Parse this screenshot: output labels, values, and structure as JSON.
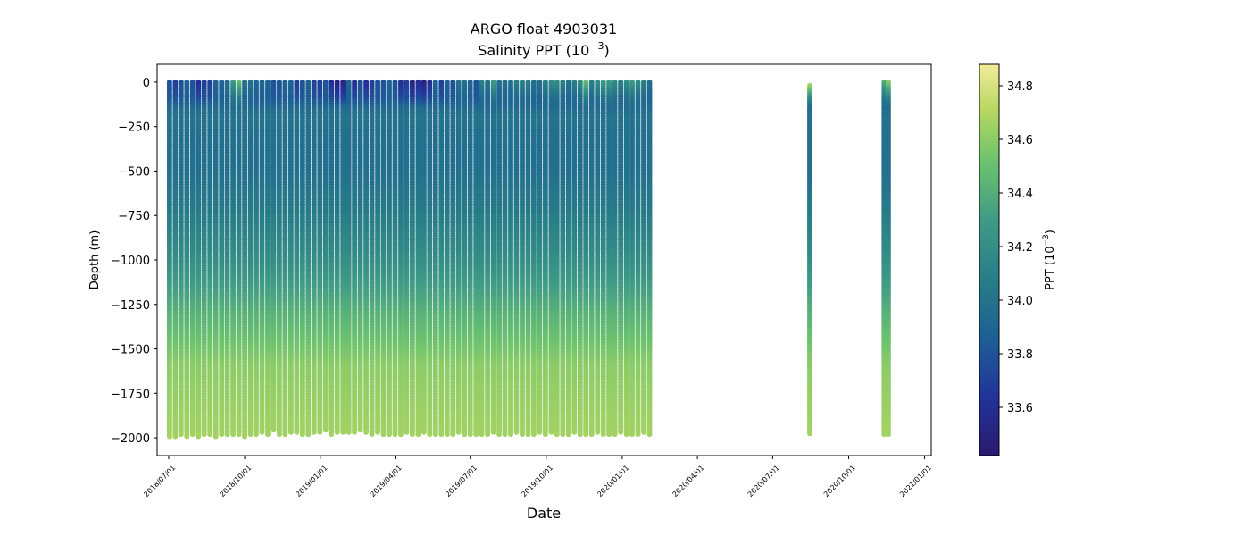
{
  "chart_data": {
    "type": "scatter",
    "title": "ARGO float 4903031",
    "subtitle_base": "Salinity PPT (10",
    "subtitle_exp": "−3",
    "subtitle_end": ")",
    "xlabel": "Date",
    "ylabel": "Depth (m)",
    "ylim": [
      -2100,
      100
    ],
    "xlim": [
      "2018-06-17",
      "2021-01-09"
    ],
    "yticks": [
      0,
      -250,
      -500,
      -750,
      -1000,
      -1250,
      -1500,
      -1750,
      -2000
    ],
    "ytick_labels": [
      "0",
      "−250",
      "−500",
      "−750",
      "−1000",
      "−1250",
      "−1500",
      "−1750",
      "−2000"
    ],
    "xticks": [
      "2018-07-01",
      "2018-10-01",
      "2019-01-01",
      "2019-04-01",
      "2019-07-01",
      "2019-10-01",
      "2020-01-01",
      "2020-04-01",
      "2020-07-01",
      "2020-10-01",
      "2021-01-01"
    ],
    "xtick_labels": [
      "2018/07/01",
      "2018/10/01",
      "2019/01/01",
      "2019/04/01",
      "2019/07/01",
      "2019/10/01",
      "2020/01/01",
      "2020/04/01",
      "2020/07/01",
      "2020/10/01",
      "2021/01/01"
    ],
    "grid": false,
    "colormap": "viridis-like (dark blue → teal → green → yellow)",
    "colorbar": {
      "label_base": "PPT (10",
      "label_exp": "−3",
      "label_end": ")",
      "range": [
        33.42,
        34.88
      ],
      "ticks": [
        33.6,
        33.8,
        34.0,
        34.2,
        34.4,
        34.6,
        34.8
      ],
      "tick_labels": [
        "33.6",
        "33.8",
        "34.0",
        "34.2",
        "34.4",
        "34.6",
        "34.8"
      ]
    },
    "profile_dates": [
      "2018-07-02",
      "2018-07-09",
      "2018-07-16",
      "2018-07-23",
      "2018-07-30",
      "2018-08-06",
      "2018-08-13",
      "2018-08-20",
      "2018-08-27",
      "2018-09-03",
      "2018-09-10",
      "2018-09-17",
      "2018-09-24",
      "2018-10-01",
      "2018-10-08",
      "2018-10-15",
      "2018-10-22",
      "2018-10-29",
      "2018-11-05",
      "2018-11-12",
      "2018-11-19",
      "2018-11-26",
      "2018-12-03",
      "2018-12-10",
      "2018-12-17",
      "2018-12-24",
      "2018-12-31",
      "2019-01-07",
      "2019-01-14",
      "2019-01-21",
      "2019-01-28",
      "2019-02-04",
      "2019-02-11",
      "2019-02-18",
      "2019-02-25",
      "2019-03-04",
      "2019-03-11",
      "2019-03-18",
      "2019-03-25",
      "2019-04-01",
      "2019-04-08",
      "2019-04-15",
      "2019-04-22",
      "2019-04-29",
      "2019-05-06",
      "2019-05-13",
      "2019-05-20",
      "2019-05-27",
      "2019-06-03",
      "2019-06-10",
      "2019-06-17",
      "2019-06-24",
      "2019-07-01",
      "2019-07-08",
      "2019-07-15",
      "2019-07-22",
      "2019-07-29",
      "2019-08-05",
      "2019-08-12",
      "2019-08-19",
      "2019-08-26",
      "2019-09-02",
      "2019-09-09",
      "2019-09-16",
      "2019-09-23",
      "2019-09-30",
      "2019-10-07",
      "2019-10-14",
      "2019-10-21",
      "2019-10-28",
      "2019-11-04",
      "2019-11-11",
      "2019-11-18",
      "2019-11-25",
      "2019-12-02",
      "2019-12-09",
      "2019-12-16",
      "2019-12-23",
      "2019-12-30",
      "2020-01-06",
      "2020-01-13",
      "2020-01-20",
      "2020-01-27",
      "2020-02-03",
      "2020-08-15",
      "2020-11-13",
      "2020-11-18"
    ],
    "profile_max_depth": [
      -2000,
      -2000,
      -1990,
      -1995,
      -1990,
      -2000,
      -1985,
      -1990,
      -1995,
      -1990,
      -1985,
      -1990,
      -1985,
      -1995,
      -1990,
      -1985,
      -1975,
      -1980,
      -1965,
      -1985,
      -1980,
      -1975,
      -1970,
      -1985,
      -1980,
      -1975,
      -1970,
      -1965,
      -1980,
      -1975,
      -1970,
      -1975,
      -1970,
      -1965,
      -1975,
      -1980,
      -1975,
      -1985,
      -1985,
      -1990,
      -1980,
      -1975,
      -1985,
      -1980,
      -1975,
      -1980,
      -1985,
      -1990,
      -1980,
      -1985,
      -1975,
      -1980,
      -1985,
      -1980,
      -1985,
      -1980,
      -1975,
      -1980,
      -1985,
      -1980,
      -1975,
      -1980,
      -1985,
      -1980,
      -1975,
      -1980,
      -1975,
      -1980,
      -1985,
      -1980,
      -1975,
      -1980,
      -1985,
      -1980,
      -1975,
      -1980,
      -1985,
      -1980,
      -1975,
      -1980,
      -1985,
      -1980,
      -1975,
      -1985,
      -1985,
      -1980,
      -1980
    ],
    "profile_top_depth": [
      0,
      0,
      0,
      0,
      0,
      0,
      0,
      0,
      0,
      0,
      0,
      0,
      0,
      0,
      0,
      0,
      0,
      0,
      0,
      0,
      0,
      0,
      0,
      0,
      0,
      0,
      0,
      0,
      0,
      0,
      0,
      0,
      0,
      0,
      0,
      0,
      0,
      0,
      0,
      0,
      0,
      0,
      0,
      0,
      0,
      0,
      0,
      0,
      0,
      0,
      0,
      0,
      0,
      0,
      0,
      0,
      0,
      0,
      0,
      0,
      0,
      0,
      0,
      0,
      0,
      0,
      0,
      0,
      0,
      0,
      0,
      0,
      0,
      0,
      0,
      0,
      0,
      0,
      0,
      0,
      0,
      0,
      0,
      0,
      -20,
      0,
      0
    ],
    "profile_surface_salinity": [
      33.8,
      33.7,
      33.8,
      33.9,
      33.8,
      33.6,
      33.7,
      33.7,
      33.9,
      33.9,
      34.0,
      34.3,
      34.5,
      34.0,
      34.0,
      33.9,
      33.9,
      33.9,
      33.8,
      33.8,
      33.9,
      33.9,
      33.7,
      33.8,
      33.9,
      33.7,
      33.7,
      33.8,
      33.6,
      33.5,
      33.5,
      33.9,
      33.6,
      33.8,
      33.6,
      33.7,
      33.8,
      33.8,
      33.9,
      33.8,
      33.6,
      33.7,
      33.5,
      33.6,
      33.5,
      33.6,
      33.9,
      33.7,
      33.9,
      33.8,
      34.0,
      34.0,
      33.9,
      33.8,
      34.1,
      34.0,
      34.3,
      34.0,
      34.0,
      34.0,
      34.1,
      34.1,
      34.1,
      34.0,
      34.0,
      34.1,
      34.2,
      34.2,
      34.1,
      34.0,
      34.1,
      34.2,
      34.5,
      34.1,
      34.2,
      34.3,
      34.3,
      34.2,
      34.1,
      34.2,
      34.3,
      34.2,
      34.1,
      34.0,
      34.8,
      34.4,
      34.6
    ],
    "salinity_profile": {
      "depth": [
        0,
        -100,
        -150,
        -200,
        -300,
        -500,
        -700,
        -1000,
        -1300,
        -1600,
        -2000
      ],
      "salinity": [
        33.8,
        33.85,
        33.95,
        34.0,
        33.98,
        33.98,
        34.05,
        34.2,
        34.42,
        34.6,
        34.66
      ]
    }
  }
}
